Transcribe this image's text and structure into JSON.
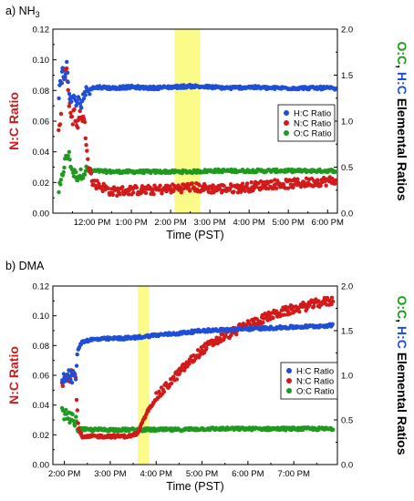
{
  "chart_data": [
    {
      "type": "scatter",
      "panel_label": "a) NH",
      "panel_label_sub": "3",
      "xlabel": "Time (PST)",
      "ylabel_left": "N:C Ratio",
      "ylabel_right_parts": [
        {
          "text": "O:C",
          "color": "#1e9a1e"
        },
        {
          "text": ", ",
          "color": "#000000"
        },
        {
          "text": "H:C",
          "color": "#1f4fd6"
        },
        {
          "text": " Elemental Ratios",
          "color": "#000000"
        }
      ],
      "x_range_hours": [
        11.0,
        18.25
      ],
      "x_ticks": [
        {
          "label": "12:00 PM",
          "hour": 12
        },
        {
          "label": "1:00 PM",
          "hour": 13
        },
        {
          "label": "2:00 PM",
          "hour": 14
        },
        {
          "label": "3:00 PM",
          "hour": 15
        },
        {
          "label": "4:00 PM",
          "hour": 16
        },
        {
          "label": "5:00 PM",
          "hour": 17
        },
        {
          "label": "6:00 PM",
          "hour": 18
        }
      ],
      "y_left_range": [
        0,
        0.12
      ],
      "y_left_ticks": [
        "0.00",
        "0.02",
        "0.04",
        "0.06",
        "0.08",
        "0.10",
        "0.12"
      ],
      "y_right_range": [
        0,
        2.0
      ],
      "y_right_ticks": [
        "0.0",
        "0.5",
        "1.0",
        "1.5",
        "2.0"
      ],
      "highlight_hours": [
        14.1,
        14.75
      ],
      "legend_position": "center-right",
      "series": [
        {
          "name": "H:C Ratio",
          "color": "#1f4fd6",
          "axis": "right",
          "points": [
            [
              11.15,
              1.3
            ],
            [
              11.2,
              1.42
            ],
            [
              11.25,
              1.55
            ],
            [
              11.3,
              1.45
            ],
            [
              11.35,
              1.62
            ],
            [
              11.4,
              1.35
            ],
            [
              11.45,
              1.25
            ],
            [
              11.5,
              1.2
            ],
            [
              11.55,
              1.28
            ],
            [
              11.6,
              1.18
            ],
            [
              11.65,
              1.22
            ],
            [
              11.7,
              1.15
            ],
            [
              11.75,
              1.25
            ],
            [
              11.8,
              1.3
            ],
            [
              11.85,
              1.32
            ],
            [
              11.9,
              1.35
            ],
            [
              12.0,
              1.36
            ],
            [
              12.2,
              1.37
            ],
            [
              12.5,
              1.36
            ],
            [
              13.0,
              1.37
            ],
            [
              13.5,
              1.36
            ],
            [
              14.0,
              1.37
            ],
            [
              14.5,
              1.38
            ],
            [
              15.0,
              1.37
            ],
            [
              15.5,
              1.36
            ],
            [
              16.0,
              1.37
            ],
            [
              16.5,
              1.36
            ],
            [
              17.0,
              1.36
            ],
            [
              17.5,
              1.36
            ],
            [
              18.0,
              1.36
            ],
            [
              18.2,
              1.35
            ]
          ]
        },
        {
          "name": "N:C Ratio",
          "color": "#d21a1a",
          "axis": "left",
          "points": [
            [
              11.15,
              0.052
            ],
            [
              11.2,
              0.06
            ],
            [
              11.25,
              0.1
            ],
            [
              11.3,
              0.09
            ],
            [
              11.35,
              0.095
            ],
            [
              11.4,
              0.075
            ],
            [
              11.45,
              0.065
            ],
            [
              11.5,
              0.058
            ],
            [
              11.55,
              0.07
            ],
            [
              11.6,
              0.055
            ],
            [
              11.7,
              0.065
            ],
            [
              11.8,
              0.06
            ],
            [
              11.9,
              0.035
            ],
            [
              12.0,
              0.02
            ],
            [
              12.2,
              0.018
            ],
            [
              12.5,
              0.014
            ],
            [
              13.0,
              0.015
            ],
            [
              13.5,
              0.015
            ],
            [
              14.0,
              0.016
            ],
            [
              14.5,
              0.017
            ],
            [
              15.0,
              0.016
            ],
            [
              15.5,
              0.016
            ],
            [
              16.0,
              0.017
            ],
            [
              16.5,
              0.019
            ],
            [
              17.0,
              0.019
            ],
            [
              17.5,
              0.02
            ],
            [
              18.0,
              0.021
            ],
            [
              18.2,
              0.021
            ]
          ]
        },
        {
          "name": "O:C Ratio",
          "color": "#1e9a1e",
          "axis": "right",
          "points": [
            [
              11.15,
              0.25
            ],
            [
              11.2,
              0.3
            ],
            [
              11.3,
              0.55
            ],
            [
              11.4,
              0.65
            ],
            [
              11.5,
              0.45
            ],
            [
              11.6,
              0.4
            ],
            [
              11.7,
              0.42
            ],
            [
              11.8,
              0.45
            ],
            [
              11.9,
              0.48
            ],
            [
              12.0,
              0.46
            ],
            [
              12.5,
              0.45
            ],
            [
              13.0,
              0.45
            ],
            [
              13.5,
              0.45
            ],
            [
              14.0,
              0.45
            ],
            [
              14.5,
              0.45
            ],
            [
              15.0,
              0.46
            ],
            [
              15.5,
              0.46
            ],
            [
              16.0,
              0.46
            ],
            [
              16.5,
              0.46
            ],
            [
              17.0,
              0.46
            ],
            [
              17.5,
              0.46
            ],
            [
              18.0,
              0.46
            ],
            [
              18.2,
              0.46
            ]
          ]
        }
      ]
    },
    {
      "type": "scatter",
      "panel_label": "b) DMA",
      "panel_label_sub": "",
      "xlabel": "Time (PST)",
      "ylabel_left": "N:C Ratio",
      "ylabel_right_parts": [
        {
          "text": "O:C",
          "color": "#1e9a1e"
        },
        {
          "text": ", ",
          "color": "#000000"
        },
        {
          "text": "H:C",
          "color": "#1f4fd6"
        },
        {
          "text": " Elemental Ratios",
          "color": "#000000"
        }
      ],
      "x_range_hours": [
        13.75,
        19.95
      ],
      "x_ticks": [
        {
          "label": "2:00 PM",
          "hour": 14
        },
        {
          "label": "3:00 PM",
          "hour": 15
        },
        {
          "label": "4:00 PM",
          "hour": 16
        },
        {
          "label": "5:00 PM",
          "hour": 17
        },
        {
          "label": "6:00 PM",
          "hour": 18
        },
        {
          "label": "7:00 PM",
          "hour": 19
        }
      ],
      "y_left_range": [
        0,
        0.12
      ],
      "y_left_ticks": [
        "0.00",
        "0.02",
        "0.04",
        "0.06",
        "0.08",
        "0.10",
        "0.12"
      ],
      "y_right_range": [
        0,
        2.0
      ],
      "y_right_ticks": [
        "0.0",
        "0.5",
        "1.0",
        "1.5",
        "2.0"
      ],
      "highlight_hours": [
        15.6,
        15.85
      ],
      "legend_position": "center-right",
      "series": [
        {
          "name": "H:C Ratio",
          "color": "#1f4fd6",
          "axis": "right",
          "points": [
            [
              13.95,
              0.95
            ],
            [
              14.0,
              1.0
            ],
            [
              14.05,
              0.98
            ],
            [
              14.1,
              1.02
            ],
            [
              14.15,
              0.96
            ],
            [
              14.2,
              1.0
            ],
            [
              14.25,
              0.99
            ],
            [
              14.3,
              1.3
            ],
            [
              14.4,
              1.38
            ],
            [
              14.6,
              1.4
            ],
            [
              15.0,
              1.41
            ],
            [
              15.5,
              1.42
            ],
            [
              16.0,
              1.45
            ],
            [
              16.5,
              1.47
            ],
            [
              17.0,
              1.5
            ],
            [
              17.5,
              1.51
            ],
            [
              18.0,
              1.52
            ],
            [
              18.5,
              1.53
            ],
            [
              19.0,
              1.54
            ],
            [
              19.5,
              1.55
            ],
            [
              19.85,
              1.56
            ]
          ]
        },
        {
          "name": "N:C Ratio",
          "color": "#d21a1a",
          "axis": "left",
          "points": [
            [
              13.95,
              0.055
            ],
            [
              14.0,
              0.058
            ],
            [
              14.05,
              0.062
            ],
            [
              14.1,
              0.058
            ],
            [
              14.15,
              0.062
            ],
            [
              14.2,
              0.06
            ],
            [
              14.25,
              0.059
            ],
            [
              14.3,
              0.025
            ],
            [
              14.4,
              0.018
            ],
            [
              14.6,
              0.019
            ],
            [
              15.0,
              0.019
            ],
            [
              15.4,
              0.019
            ],
            [
              15.6,
              0.021
            ],
            [
              15.8,
              0.035
            ],
            [
              16.0,
              0.045
            ],
            [
              16.3,
              0.055
            ],
            [
              16.6,
              0.065
            ],
            [
              17.0,
              0.077
            ],
            [
              17.3,
              0.083
            ],
            [
              17.6,
              0.088
            ],
            [
              18.0,
              0.094
            ],
            [
              18.4,
              0.099
            ],
            [
              18.8,
              0.103
            ],
            [
              19.2,
              0.106
            ],
            [
              19.6,
              0.109
            ],
            [
              19.85,
              0.11
            ]
          ]
        },
        {
          "name": "O:C Ratio",
          "color": "#1e9a1e",
          "axis": "right",
          "points": [
            [
              13.95,
              0.58
            ],
            [
              14.05,
              0.55
            ],
            [
              14.15,
              0.52
            ],
            [
              14.25,
              0.48
            ],
            [
              14.3,
              0.4
            ],
            [
              14.5,
              0.39
            ],
            [
              15.0,
              0.39
            ],
            [
              15.5,
              0.39
            ],
            [
              16.0,
              0.39
            ],
            [
              16.5,
              0.39
            ],
            [
              17.0,
              0.4
            ],
            [
              17.5,
              0.4
            ],
            [
              18.0,
              0.4
            ],
            [
              18.5,
              0.4
            ],
            [
              19.0,
              0.4
            ],
            [
              19.5,
              0.4
            ],
            [
              19.85,
              0.4
            ]
          ]
        }
      ]
    }
  ]
}
